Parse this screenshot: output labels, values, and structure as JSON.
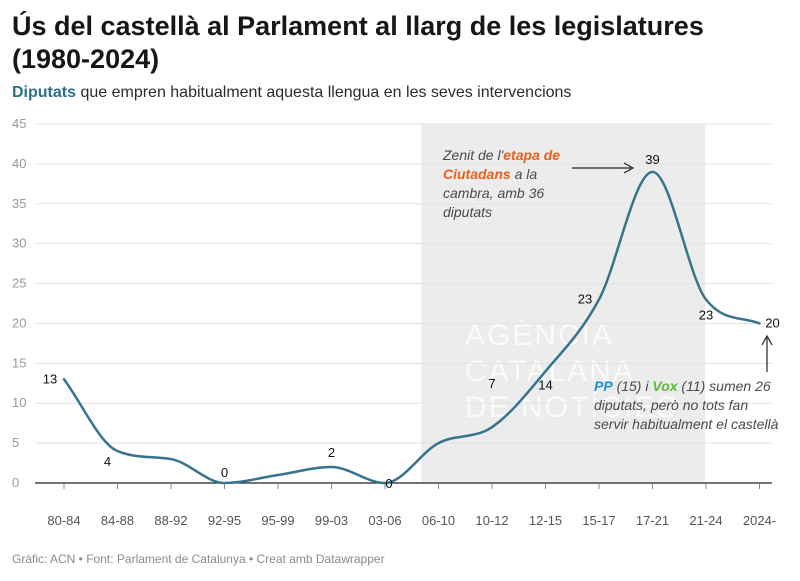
{
  "header": {
    "title": "Ús del castellà al Parlament al llarg de les legislatures (1980-2024)",
    "subtitle_highlight": "Diputats",
    "subtitle_rest": " que empren habitualment aquesta llengua en les seves intervencions"
  },
  "chart_data": {
    "type": "line",
    "title": "Ús del castellà al Parlament al llarg de les legislatures (1980-2024)",
    "subtitle": "Diputats que empren habitualment aquesta llengua en les seves intervencions",
    "xlabel": "",
    "ylabel": "",
    "ylim": [
      0,
      45
    ],
    "yticks": [
      0,
      5,
      10,
      15,
      20,
      25,
      30,
      35,
      40,
      45
    ],
    "categories": [
      "80-84",
      "84-88",
      "88-92",
      "92-95",
      "95-99",
      "99-03",
      "03-06",
      "06-10",
      "10-12",
      "12-15",
      "15-17",
      "17-21",
      "21-24",
      "2024-"
    ],
    "series": [
      {
        "name": "Diputats",
        "values": [
          13,
          4,
          3,
          0,
          1,
          2,
          0,
          5,
          7,
          14,
          23,
          39,
          23,
          20
        ],
        "color": "#35748a"
      }
    ],
    "data_labels": [
      {
        "index": 0,
        "text": "13"
      },
      {
        "index": 1,
        "text": "4"
      },
      {
        "index": 3,
        "text": "0"
      },
      {
        "index": 5,
        "text": "2"
      },
      {
        "index": 6,
        "text": "0"
      },
      {
        "index": 8,
        "text": "7"
      },
      {
        "index": 9,
        "text": "14"
      },
      {
        "index": 10,
        "text": "23"
      },
      {
        "index": 11,
        "text": "39"
      },
      {
        "index": 12,
        "text": "23"
      },
      {
        "index": 13,
        "text": "20"
      }
    ],
    "shaded_range": [
      "06-10",
      "21-24"
    ],
    "shade_color": "#ececec",
    "watermark": [
      "AGÈNCIA",
      "CATALANA",
      "DE NOTÍCIES"
    ]
  },
  "annotations": {
    "ciutadans": {
      "before": "Zenit de l'",
      "highlight": "etapa de Ciutadans",
      "after": " a la cambra, amb 36 diputats",
      "color": "#e8601c"
    },
    "ppvox": {
      "pp": "PP",
      "pp_count": " (15) i ",
      "vox": "Vox",
      "rest": " (11) sumen 26 diputats, però no tots fan servir habitualment el castellà",
      "pp_color": "#1f8fd6",
      "vox_color": "#5db83a"
    }
  },
  "footer": {
    "text": "Gràfic: ACN • Font: Parlament de Catalunya • Creat amb Datawrapper"
  }
}
